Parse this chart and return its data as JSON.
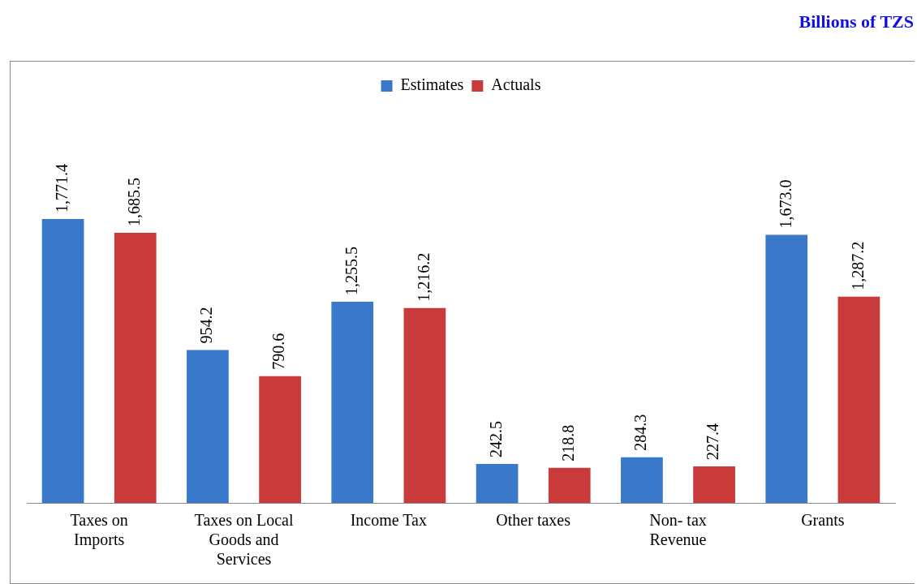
{
  "chart_data": {
    "type": "bar",
    "annotations": [
      "Billions of TZS"
    ],
    "categories": [
      "Taxes on Imports",
      "Taxes on Local Goods and Services",
      "Income Tax",
      "Other taxes",
      "Non- tax Revenue",
      "Grants"
    ],
    "series": [
      {
        "name": "Estimates",
        "color": "#3a78c9",
        "values": [
          1771.4,
          954.2,
          1255.5,
          242.5,
          284.3,
          1673.0
        ],
        "value_labels": [
          "1,771.4",
          "954.2",
          "1,255.5",
          "242.5",
          "284.3",
          "1,673.0"
        ]
      },
      {
        "name": "Actuals",
        "color": "#c93a3a",
        "values": [
          1685.5,
          790.6,
          1216.2,
          218.8,
          227.4,
          1287.2
        ],
        "value_labels": [
          "1,685.5",
          "790.6",
          "1,216.2",
          "218.8",
          "227.4",
          "1,287.2"
        ]
      }
    ],
    "legend": "top",
    "grid": false
  }
}
